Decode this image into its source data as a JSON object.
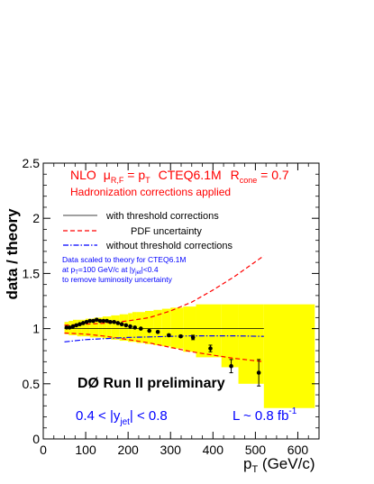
{
  "chart_data": {
    "type": "scatter",
    "xlabel_main": "p",
    "xlabel_sub": "T",
    "xlabel_tail": " (GeV/c)",
    "ylabel": "data / theory",
    "xlim": [
      0,
      650
    ],
    "ylim": [
      0,
      2.5
    ],
    "x_ticks": [
      {
        "v": 0,
        "label": "0"
      },
      {
        "v": 100,
        "label": "100"
      },
      {
        "v": 200,
        "label": "200"
      },
      {
        "v": 300,
        "label": "300"
      },
      {
        "v": 400,
        "label": "400"
      },
      {
        "v": 500,
        "label": "500"
      },
      {
        "v": 600,
        "label": "600"
      }
    ],
    "y_ticks": [
      {
        "v": 0,
        "label": "0"
      },
      {
        "v": 0.5,
        "label": "0.5"
      },
      {
        "v": 1,
        "label": "1"
      },
      {
        "v": 1.5,
        "label": "1.5"
      },
      {
        "v": 2,
        "label": "2"
      },
      {
        "v": 2.5,
        "label": "2.5"
      }
    ],
    "header": {
      "nlo": "NLO",
      "mu": "μ",
      "mu_sub": "R,F",
      "eq_p": " = p",
      "p_sub": "T",
      "cteq": "CTEQ6.1M",
      "r": "R",
      "r_sub": "cone",
      "r_val": " = 0.7",
      "line2": "Hadronization corrections applied"
    },
    "legend": [
      {
        "label": "with threshold corrections",
        "style": "solid"
      },
      {
        "label": "PDF uncertainty",
        "style": "dashed"
      },
      {
        "label": "without threshold corrections",
        "style": "dashdot"
      }
    ],
    "note": {
      "l1": "Data scaled to theory for CTEQ6.1M",
      "l2a": "at p",
      "l2sub": "T",
      "l2b": "=100 GeV/c at |y",
      "l2sub2": "jet",
      "l2c": "|<0.4",
      "l3": "to remove luminosity uncertainty"
    },
    "experiment": "DØ Run II preliminary",
    "rapidity": {
      "pre": "0.4 < |y",
      "sub": "jet",
      "post": "| < 0.8"
    },
    "lumi": {
      "pre": "L ~ 0.8 fb",
      "sup": "-1"
    },
    "colors": {
      "band": "#ffff00",
      "header": "#ff0000",
      "note": "#0000ff",
      "pdf": "#ff0000",
      "nothreshold": "#0000ff",
      "reference": "#000000",
      "data": "#000000"
    },
    "reference_line": {
      "x": [
        50,
        520
      ],
      "y": 1.0
    },
    "systematic_band": [
      {
        "x0": 50,
        "x1": 60,
        "lo": 0.95,
        "hi": 1.06
      },
      {
        "x0": 60,
        "x1": 70,
        "lo": 0.94,
        "hi": 1.07
      },
      {
        "x0": 70,
        "x1": 80,
        "lo": 0.94,
        "hi": 1.08
      },
      {
        "x0": 80,
        "x1": 90,
        "lo": 0.93,
        "hi": 1.08
      },
      {
        "x0": 90,
        "x1": 100,
        "lo": 0.93,
        "hi": 1.08
      },
      {
        "x0": 100,
        "x1": 110,
        "lo": 0.93,
        "hi": 1.09
      },
      {
        "x0": 110,
        "x1": 120,
        "lo": 0.92,
        "hi": 1.09
      },
      {
        "x0": 120,
        "x1": 130,
        "lo": 0.92,
        "hi": 1.1
      },
      {
        "x0": 130,
        "x1": 140,
        "lo": 0.92,
        "hi": 1.1
      },
      {
        "x0": 140,
        "x1": 150,
        "lo": 0.91,
        "hi": 1.11
      },
      {
        "x0": 150,
        "x1": 160,
        "lo": 0.91,
        "hi": 1.11
      },
      {
        "x0": 160,
        "x1": 170,
        "lo": 0.9,
        "hi": 1.12
      },
      {
        "x0": 170,
        "x1": 180,
        "lo": 0.9,
        "hi": 1.12
      },
      {
        "x0": 180,
        "x1": 190,
        "lo": 0.89,
        "hi": 1.13
      },
      {
        "x0": 190,
        "x1": 200,
        "lo": 0.89,
        "hi": 1.13
      },
      {
        "x0": 200,
        "x1": 210,
        "lo": 0.88,
        "hi": 1.14
      },
      {
        "x0": 210,
        "x1": 220,
        "lo": 0.88,
        "hi": 1.15
      },
      {
        "x0": 220,
        "x1": 240,
        "lo": 0.87,
        "hi": 1.15
      },
      {
        "x0": 240,
        "x1": 260,
        "lo": 0.86,
        "hi": 1.16
      },
      {
        "x0": 260,
        "x1": 280,
        "lo": 0.85,
        "hi": 1.17
      },
      {
        "x0": 280,
        "x1": 300,
        "lo": 0.84,
        "hi": 1.18
      },
      {
        "x0": 300,
        "x1": 330,
        "lo": 0.82,
        "hi": 1.19
      },
      {
        "x0": 330,
        "x1": 360,
        "lo": 0.79,
        "hi": 1.2
      },
      {
        "x0": 360,
        "x1": 420,
        "lo": 0.74,
        "hi": 1.22
      },
      {
        "x0": 420,
        "x1": 460,
        "lo": 0.65,
        "hi": 1.22
      },
      {
        "x0": 460,
        "x1": 520,
        "lo": 0.5,
        "hi": 1.22
      },
      {
        "x0": 520,
        "x1": 640,
        "lo": 0.28,
        "hi": 1.22
      }
    ],
    "series": [
      {
        "name": "PDF uncertainty",
        "style": "dashed",
        "x": [
          50,
          100,
          150,
          200,
          250,
          300,
          350,
          400,
          450,
          520
        ],
        "y": [
          1.03,
          1.04,
          1.05,
          1.07,
          1.1,
          1.16,
          1.24,
          1.35,
          1.47,
          1.66
        ]
      },
      {
        "name": "PDF uncertainty",
        "style": "dashed",
        "x": [
          50,
          100,
          150,
          200,
          250,
          300,
          350,
          400,
          450,
          520
        ],
        "y": [
          0.96,
          0.95,
          0.93,
          0.9,
          0.87,
          0.83,
          0.79,
          0.76,
          0.73,
          0.7
        ]
      },
      {
        "name": "without threshold corrections",
        "style": "dashdot",
        "x": [
          50,
          100,
          150,
          200,
          250,
          300,
          350,
          400,
          450,
          520
        ],
        "y": [
          0.88,
          0.9,
          0.91,
          0.92,
          0.925,
          0.93,
          0.935,
          0.935,
          0.935,
          0.93
        ]
      }
    ],
    "points": [
      {
        "x": 55,
        "y": 1.01,
        "err": 0.0
      },
      {
        "x": 62,
        "y": 1.01,
        "err": 0.0
      },
      {
        "x": 70,
        "y": 1.02,
        "err": 0.0
      },
      {
        "x": 78,
        "y": 1.03,
        "err": 0.0
      },
      {
        "x": 86,
        "y": 1.04,
        "err": 0.0
      },
      {
        "x": 94,
        "y": 1.05,
        "err": 0.0
      },
      {
        "x": 102,
        "y": 1.06,
        "err": 0.0
      },
      {
        "x": 110,
        "y": 1.07,
        "err": 0.0
      },
      {
        "x": 118,
        "y": 1.07,
        "err": 0.0
      },
      {
        "x": 126,
        "y": 1.08,
        "err": 0.0
      },
      {
        "x": 134,
        "y": 1.07,
        "err": 0.0
      },
      {
        "x": 142,
        "y": 1.07,
        "err": 0.0
      },
      {
        "x": 150,
        "y": 1.07,
        "err": 0.0
      },
      {
        "x": 158,
        "y": 1.06,
        "err": 0.0
      },
      {
        "x": 167,
        "y": 1.06,
        "err": 0.0
      },
      {
        "x": 176,
        "y": 1.05,
        "err": 0.0
      },
      {
        "x": 185,
        "y": 1.04,
        "err": 0.0
      },
      {
        "x": 195,
        "y": 1.03,
        "err": 0.0
      },
      {
        "x": 205,
        "y": 1.02,
        "err": 0.0
      },
      {
        "x": 216,
        "y": 1.01,
        "err": 0.0
      },
      {
        "x": 230,
        "y": 1.0,
        "err": 0.0
      },
      {
        "x": 250,
        "y": 0.98,
        "err": 0.0
      },
      {
        "x": 270,
        "y": 0.97,
        "err": 0.0
      },
      {
        "x": 296,
        "y": 0.94,
        "err": 0.01
      },
      {
        "x": 324,
        "y": 0.93,
        "err": 0.01
      },
      {
        "x": 353,
        "y": 0.92,
        "err": 0.02
      },
      {
        "x": 394,
        "y": 0.82,
        "err": 0.03
      },
      {
        "x": 443,
        "y": 0.66,
        "err": 0.06
      },
      {
        "x": 508,
        "y": 0.6,
        "err": 0.12
      }
    ]
  }
}
